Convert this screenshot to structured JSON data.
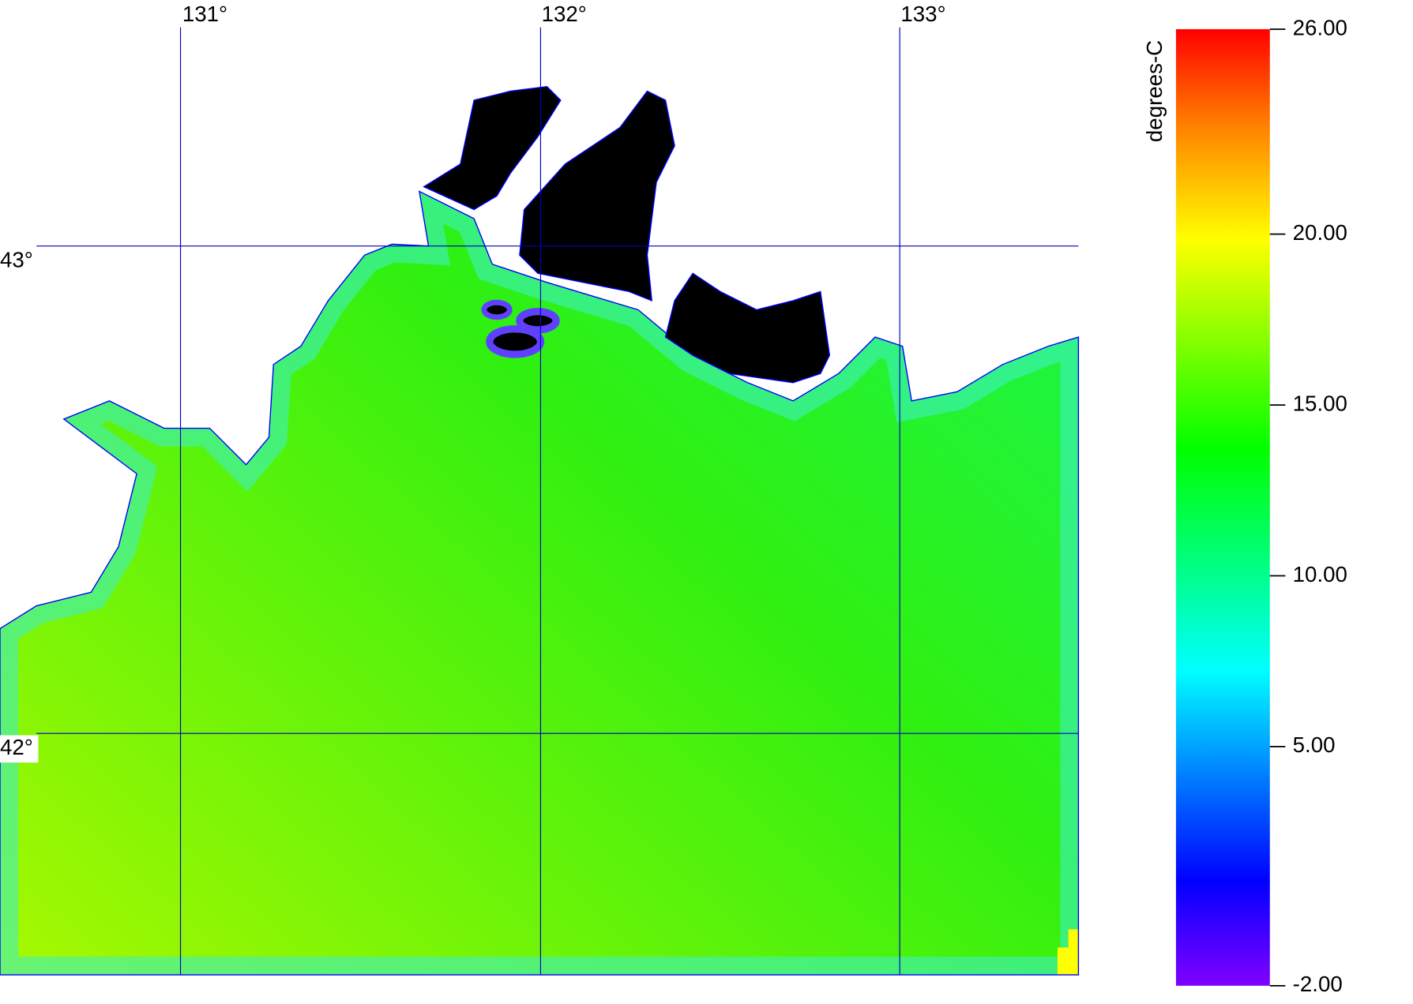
{
  "map": {
    "lon_labels": [
      "131°",
      "132°",
      "133°"
    ],
    "lat_labels": [
      "43°",
      "42°"
    ]
  },
  "colorbar": {
    "label": "degrees-C",
    "range": [
      -2,
      26
    ],
    "ticks": [
      {
        "value": 26,
        "label": "26.00"
      },
      {
        "value": 20,
        "label": "20.00"
      },
      {
        "value": 15,
        "label": "15.00"
      },
      {
        "value": 10,
        "label": "10.00"
      },
      {
        "value": 5,
        "label": "5.00"
      },
      {
        "value": -2,
        "label": "-2.00"
      }
    ]
  }
}
